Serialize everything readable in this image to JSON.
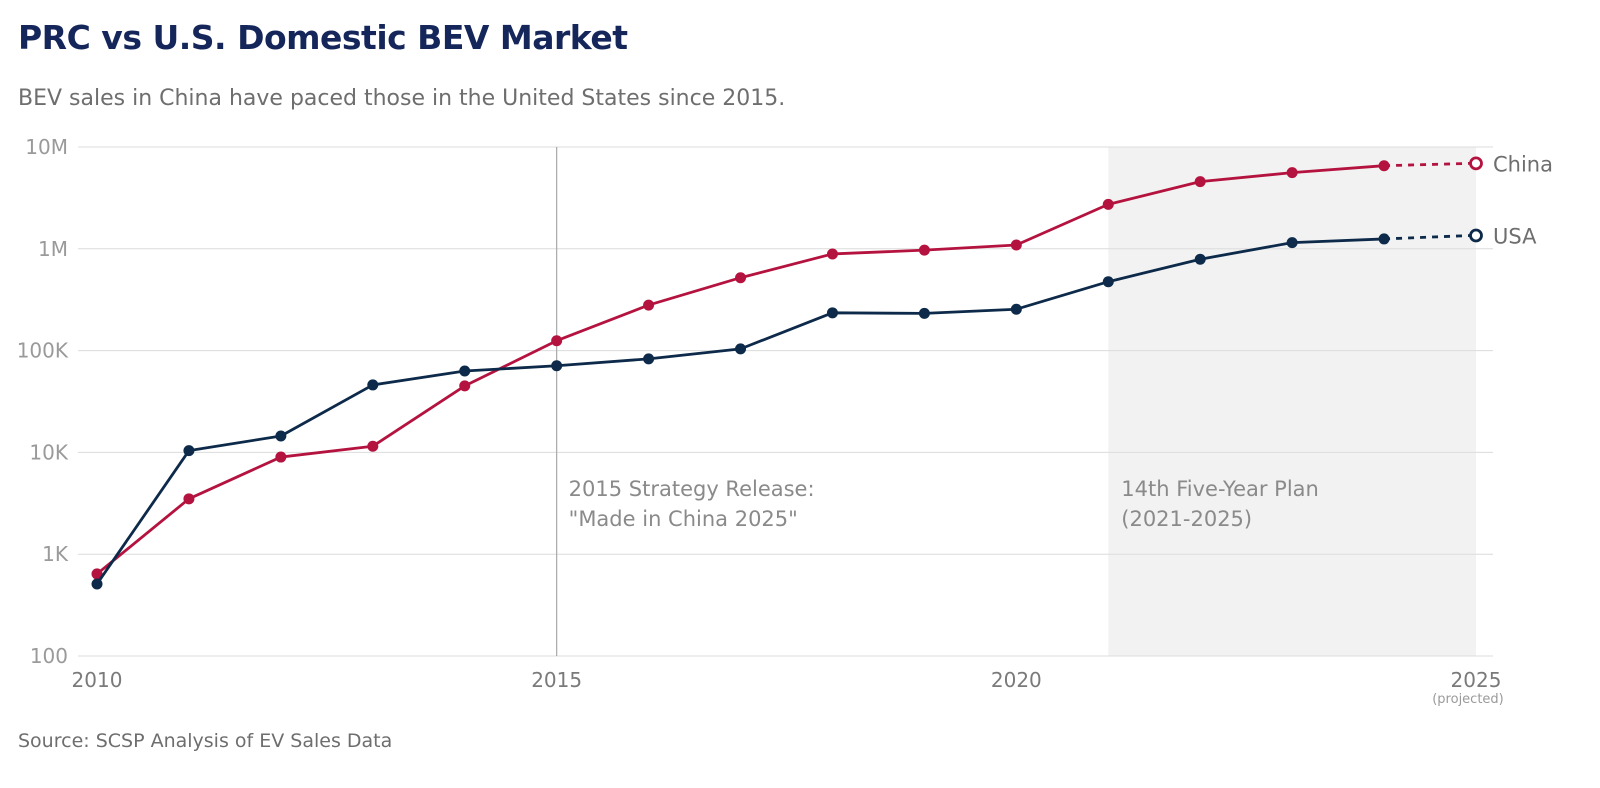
{
  "title": "PRC vs U.S. Domestic BEV Market",
  "subtitle": "BEV sales in China have paced those in the United States since 2015.",
  "source": "Source: SCSP Analysis of EV Sales Data",
  "colors": {
    "china": "#b5133f",
    "usa": "#0d2a4a",
    "grid": "#dcdcdc",
    "shade": "#f2f2f2",
    "axis_text": "#9a9a9a",
    "annotation": "#8a8a8a"
  },
  "chart_data": {
    "type": "line",
    "yscale": "log",
    "ylim": [
      100,
      10000000
    ],
    "xlim": [
      2010,
      2025
    ],
    "y_ticks": [
      {
        "value": 10000000,
        "label": "10M"
      },
      {
        "value": 1000000,
        "label": "1M"
      },
      {
        "value": 100000,
        "label": "100K"
      },
      {
        "value": 10000,
        "label": "10K"
      },
      {
        "value": 1000,
        "label": "1K"
      },
      {
        "value": 100,
        "label": "100"
      }
    ],
    "x_ticks": [
      {
        "value": 2010,
        "label": "2010",
        "sublabel": ""
      },
      {
        "value": 2015,
        "label": "2015",
        "sublabel": ""
      },
      {
        "value": 2020,
        "label": "2020",
        "sublabel": ""
      },
      {
        "value": 2025,
        "label": "2025",
        "sublabel": "(projected)"
      }
    ],
    "series": [
      {
        "name": "China",
        "key": "china",
        "x": [
          2010,
          2011,
          2012,
          2013,
          2014,
          2015,
          2016,
          2017,
          2018,
          2019,
          2020,
          2021,
          2022,
          2023,
          2024
        ],
        "values": [
          640,
          3500,
          9000,
          11500,
          45000,
          125000,
          280000,
          520000,
          890000,
          970000,
          1090000,
          2730000,
          4570000,
          5600000,
          6550000
        ],
        "projected": {
          "x": 2025,
          "value": 6900000
        }
      },
      {
        "name": "USA",
        "key": "usa",
        "x": [
          2010,
          2011,
          2012,
          2013,
          2014,
          2015,
          2016,
          2017,
          2018,
          2019,
          2020,
          2021,
          2022,
          2023,
          2024
        ],
        "values": [
          510,
          10400,
          14500,
          46000,
          63000,
          71000,
          83000,
          104000,
          235000,
          232000,
          255000,
          475000,
          790000,
          1150000,
          1250000
        ],
        "projected": {
          "x": 2025,
          "value": 1350000
        }
      }
    ],
    "annotations": [
      {
        "x": 2015,
        "type": "vline",
        "lines": [
          "2015 Strategy Release:",
          "\"Made in China 2025\""
        ]
      },
      {
        "x_start": 2021,
        "x_end": 2025,
        "type": "band",
        "lines": [
          "14th Five-Year Plan",
          "(2021-2025)"
        ]
      }
    ]
  }
}
